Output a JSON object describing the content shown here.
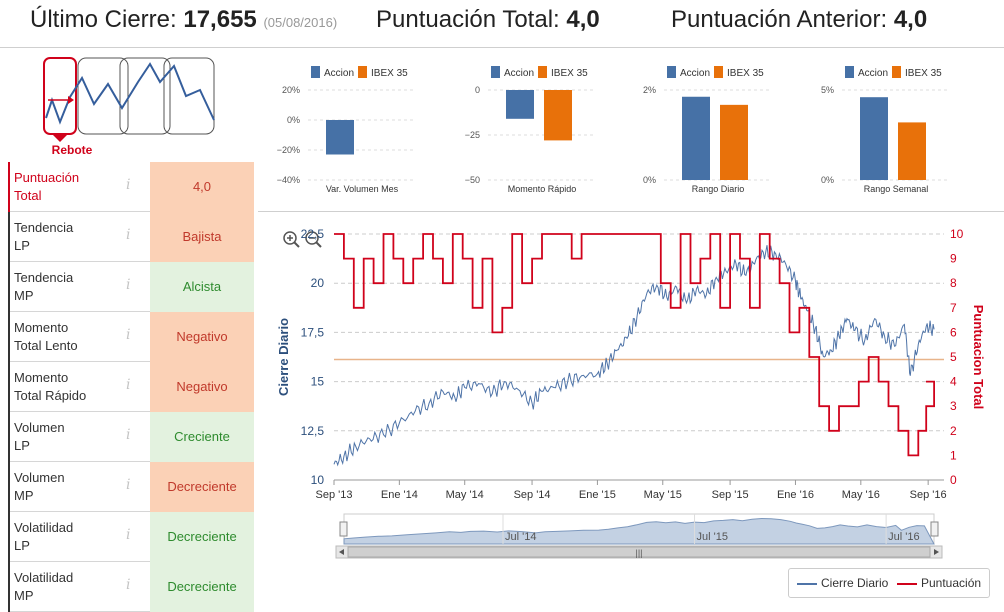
{
  "header": {
    "last_close_label": "Último Cierre:",
    "last_close_value": "17,655",
    "last_close_date": "(05/08/2016)",
    "total_score_label": "Puntuación Total:",
    "total_score_value": "4,0",
    "prev_score_label": "Puntuación Anterior:",
    "prev_score_value": "4,0"
  },
  "pattern": {
    "label": "Rebote"
  },
  "metrics": [
    {
      "label": "Puntuación\nTotal",
      "value": "4,0",
      "tone": "neutral",
      "active": true
    },
    {
      "label": "Tendencia\nLP",
      "value": "Bajista",
      "tone": "neg"
    },
    {
      "label": "Tendencia\nMP",
      "value": "Alcista",
      "tone": "pos"
    },
    {
      "label": "Momento\nTotal Lento",
      "value": "Negativo",
      "tone": "neg"
    },
    {
      "label": "Momento\nTotal Rápido",
      "value": "Negativo",
      "tone": "neg"
    },
    {
      "label": "Volumen\nLP",
      "value": "Creciente",
      "tone": "pos"
    },
    {
      "label": "Volumen\nMP",
      "value": "Decreciente",
      "tone": "neg"
    },
    {
      "label": "Volatilidad\nLP",
      "value": "Decreciente",
      "tone": "pos"
    },
    {
      "label": "Volatilidad\nMP",
      "value": "Decreciente",
      "tone": "pos"
    }
  ],
  "info_glyph": "i",
  "colors": {
    "accion": "#4671a6",
    "ibex": "#e8710a",
    "close_line": "#4f74a8",
    "score_line": "#d0021b",
    "ref_line": "#e8b48a"
  },
  "legend": {
    "close": "Cierre Diario",
    "score": "Puntuación"
  },
  "chart_data": [
    {
      "type": "bar",
      "title": "Var. Volumen Mes",
      "legend": [
        "Accion",
        "IBEX 35"
      ],
      "yticks": [
        "20%",
        "0%",
        "−20%",
        "−40%"
      ],
      "ylim": [
        -40,
        20
      ],
      "values": [
        -23,
        null
      ]
    },
    {
      "type": "bar",
      "title": "Momento Rápido",
      "legend": [
        "Accion",
        "IBEX 35"
      ],
      "yticks": [
        "0",
        "−25",
        "−50"
      ],
      "ylim": [
        -50,
        0
      ],
      "values": [
        -16,
        -28
      ]
    },
    {
      "type": "bar",
      "title": "Rango Diario",
      "legend": [
        "Accion",
        "IBEX 35"
      ],
      "yticks": [
        "2%",
        "0%"
      ],
      "ylim": [
        0,
        2
      ],
      "values": [
        1.85,
        1.67
      ]
    },
    {
      "type": "bar",
      "title": "Rango Semanal",
      "legend": [
        "Accion",
        "IBEX 35"
      ],
      "yticks": [
        "5%",
        "0%"
      ],
      "ylim": [
        0,
        5
      ],
      "values": [
        4.6,
        3.2
      ]
    },
    {
      "type": "line",
      "title": "",
      "ylabel_left": "Cierre Diario",
      "ylabel_right": "Puntuacion Total",
      "ylim_left": [
        10,
        22.5
      ],
      "yticks_left": [
        "10",
        "12,5",
        "15",
        "17,5",
        "20",
        "22,5"
      ],
      "ylim_right": [
        0,
        10
      ],
      "yticks_right": [
        "0",
        "1",
        "2",
        "3",
        "4",
        "5",
        "6",
        "7",
        "8",
        "9",
        "10"
      ],
      "xlim": [
        2013.67,
        2016.75
      ],
      "xticks": [
        {
          "x": 2013.67,
          "label": "Sep '13"
        },
        {
          "x": 2014.0,
          "label": "Ene '14"
        },
        {
          "x": 2014.33,
          "label": "May '14"
        },
        {
          "x": 2014.67,
          "label": "Sep '14"
        },
        {
          "x": 2015.0,
          "label": "Ene '15"
        },
        {
          "x": 2015.33,
          "label": "May '15"
        },
        {
          "x": 2015.67,
          "label": "Sep '15"
        },
        {
          "x": 2016.0,
          "label": "Ene '16"
        },
        {
          "x": 2016.33,
          "label": "May '16"
        },
        {
          "x": 2016.67,
          "label": "Sep '16"
        }
      ],
      "reference_score": 4.9,
      "close_series": {
        "name": "Cierre Diario",
        "x": [
          2013.67,
          2013.72,
          2013.78,
          2013.85,
          2013.92,
          2014.0,
          2014.08,
          2014.15,
          2014.22,
          2014.28,
          2014.33,
          2014.4,
          2014.47,
          2014.53,
          2014.6,
          2014.67,
          2014.72,
          2014.78,
          2014.85,
          2014.92,
          2015.0,
          2015.05,
          2015.1,
          2015.15,
          2015.2,
          2015.25,
          2015.3,
          2015.35,
          2015.4,
          2015.45,
          2015.5,
          2015.55,
          2015.6,
          2015.65,
          2015.7,
          2015.75,
          2015.8,
          2015.85,
          2015.9,
          2015.95,
          2016.0,
          2016.03,
          2016.06,
          2016.1,
          2016.14,
          2016.18,
          2016.22,
          2016.26,
          2016.3,
          2016.35,
          2016.4,
          2016.45,
          2016.5,
          2016.55,
          2016.58,
          2016.62,
          2016.66,
          2016.7
        ],
        "y": [
          10.8,
          11.2,
          11.7,
          12.1,
          12.3,
          12.9,
          13.5,
          13.9,
          14.5,
          14.2,
          14.7,
          14.9,
          14.4,
          15.0,
          14.6,
          13.9,
          14.5,
          14.7,
          15.0,
          15.3,
          15.4,
          15.9,
          16.6,
          17.2,
          18.3,
          19.5,
          19.9,
          19.3,
          19.8,
          19.0,
          19.7,
          19.4,
          20.3,
          20.6,
          21.0,
          20.4,
          21.2,
          21.6,
          21.5,
          21.0,
          20.1,
          19.2,
          18.6,
          17.7,
          16.3,
          16.6,
          17.3,
          18.2,
          17.6,
          17.1,
          18.2,
          17.3,
          16.8,
          17.9,
          15.3,
          16.9,
          17.8,
          17.65
        ]
      },
      "score_series": {
        "name": "Puntuación",
        "x": [
          2013.67,
          2013.72,
          2013.77,
          2013.82,
          2013.87,
          2013.92,
          2013.97,
          2014.02,
          2014.07,
          2014.12,
          2014.17,
          2014.22,
          2014.27,
          2014.32,
          2014.37,
          2014.42,
          2014.47,
          2014.52,
          2014.57,
          2014.62,
          2014.67,
          2014.72,
          2014.77,
          2014.82,
          2014.87,
          2014.92,
          2014.97,
          2015.02,
          2015.07,
          2015.12,
          2015.17,
          2015.22,
          2015.27,
          2015.32,
          2015.37,
          2015.42,
          2015.47,
          2015.52,
          2015.57,
          2015.62,
          2015.67,
          2015.72,
          2015.77,
          2015.82,
          2015.87,
          2015.92,
          2015.97,
          2016.02,
          2016.07,
          2016.12,
          2016.17,
          2016.22,
          2016.27,
          2016.32,
          2016.37,
          2016.42,
          2016.47,
          2016.52,
          2016.57,
          2016.62,
          2016.66,
          2016.7
        ],
        "y": [
          10,
          9,
          7,
          9,
          8,
          10,
          9,
          8,
          9,
          10,
          9,
          8,
          10,
          9,
          7,
          9,
          6,
          7,
          10,
          8,
          9,
          10,
          10,
          10,
          9,
          10,
          10,
          10,
          10,
          10,
          10,
          10,
          10,
          8,
          7,
          10,
          8,
          9,
          10,
          7,
          10,
          9,
          7,
          10,
          9,
          8,
          6,
          7,
          5,
          3,
          2,
          3,
          3,
          4,
          5,
          4,
          3,
          2,
          1,
          2,
          3,
          4
        ]
      }
    }
  ],
  "navigator": {
    "labels": [
      "Jul '14",
      "Jul '15",
      "Jul '16"
    ],
    "scroll_glyph": "|||"
  }
}
